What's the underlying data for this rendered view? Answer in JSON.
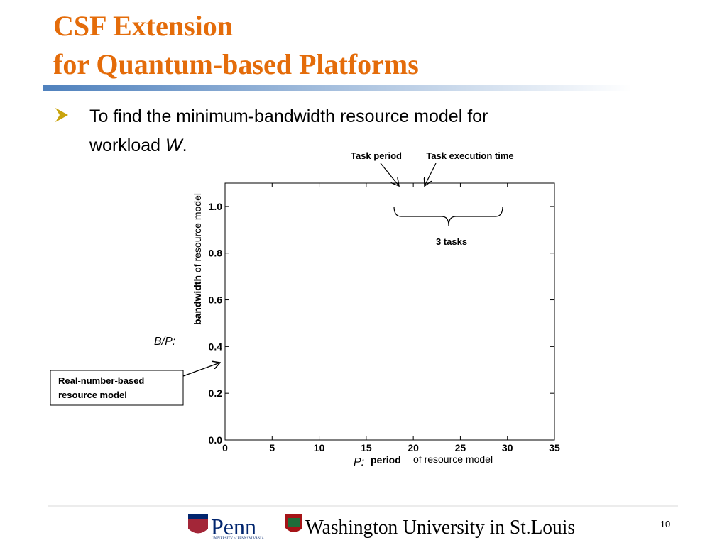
{
  "header": {
    "title_lines": [
      "CSF Extension",
      "for Quantum-based Platforms"
    ]
  },
  "bullet": {
    "parts": [
      "To find the minimum-bandwidth resource model for",
      "workload ",
      "W",
      "."
    ]
  },
  "chart": {
    "xlim": [
      0,
      35
    ],
    "ylim": [
      0,
      1.1
    ],
    "xticks": [
      0,
      5,
      10,
      15,
      20,
      25,
      30,
      35
    ],
    "yticks": [
      {
        "value": 0,
        "label": "0.0"
      },
      {
        "value": 0.2,
        "label": "0.2"
      },
      {
        "value": 0.4,
        "label": "0.4"
      },
      {
        "value": 0.6,
        "label": "0.6"
      },
      {
        "value": 0.8,
        "label": "0.8"
      },
      {
        "value": 1.0,
        "label": "1.0"
      }
    ],
    "y_label": {
      "symbol": "B/P:",
      "bold": "bandwidth",
      "rest": " of resource model"
    },
    "x_label": {
      "symbol": "P:",
      "bold": "period",
      "rest": "of resource model"
    },
    "annotations": {
      "task_period": "Task period",
      "task_execution_time": "Task execution time",
      "tasks": "3 tasks",
      "model_box": [
        "Real-number-based",
        "resource model"
      ]
    }
  },
  "footer": {
    "penn": "Penn",
    "penn_sub": "UNIVERSITY of PENNSYLVANIA",
    "washu": "Washington University in St.Louis",
    "page_number": "10"
  }
}
